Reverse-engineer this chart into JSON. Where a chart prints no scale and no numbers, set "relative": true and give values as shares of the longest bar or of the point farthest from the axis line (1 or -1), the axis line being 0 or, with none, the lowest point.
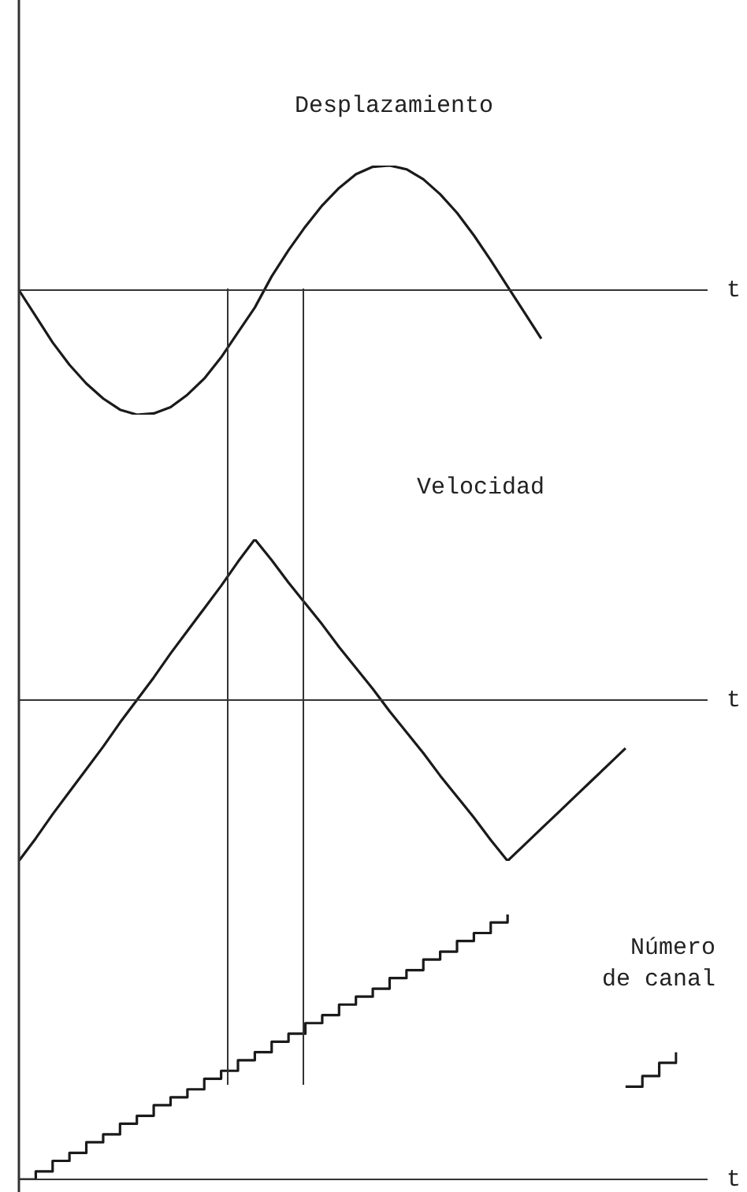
{
  "chart_data": [
    {
      "type": "line",
      "title": "Desplazamiento",
      "xlabel": "t",
      "relative": true,
      "marker": "none",
      "color": "#1a1a1a",
      "categories": [
        null,
        null,
        null,
        null,
        null,
        null,
        null,
        null,
        null,
        null,
        null,
        null,
        null,
        null,
        null,
        null,
        null,
        null,
        null,
        null,
        null,
        null,
        null,
        null,
        null,
        null,
        null,
        null,
        null,
        null,
        null,
        null,
        null,
        null,
        null,
        null,
        null,
        null,
        null,
        null
      ],
      "values": [
        0,
        -0.21,
        -0.42,
        -0.6,
        -0.75,
        -0.87,
        -0.96,
        -1,
        -0.99,
        -0.94,
        -0.84,
        -0.71,
        -0.54,
        -0.34,
        -0.14,
        0.11,
        0.32,
        0.51,
        0.68,
        0.82,
        0.93,
        0.99,
        1,
        0.97,
        0.89,
        0.77,
        0.62,
        0.44,
        0.24,
        0.03,
        -0.18,
        -0.39,
        null,
        null,
        null,
        null,
        null,
        null,
        null,
        null
      ]
    },
    {
      "type": "line",
      "title": "Velocidad",
      "xlabel": "t",
      "relative": true,
      "marker": "none",
      "color": "#1a1a1a",
      "categories": [
        null,
        null,
        null,
        null,
        null,
        null,
        null,
        null,
        null,
        null,
        null,
        null,
        null,
        null,
        null,
        null,
        null,
        null,
        null,
        null,
        null,
        null,
        null,
        null,
        null,
        null,
        null,
        null,
        null,
        null,
        null,
        null,
        null,
        null,
        null,
        null,
        null,
        null,
        null,
        null
      ],
      "values": [
        -1,
        -0.86,
        -0.71,
        -0.57,
        -0.43,
        -0.29,
        -0.14,
        0,
        0.14,
        0.29,
        0.43,
        0.57,
        0.71,
        0.86,
        1,
        0.87,
        0.73,
        0.6,
        0.47,
        0.33,
        0.2,
        0.07,
        -0.07,
        -0.2,
        -0.33,
        -0.47,
        -0.6,
        -0.73,
        -0.87,
        -1,
        -0.9,
        -0.8,
        -0.7,
        -0.6,
        -0.5,
        -0.4,
        -0.3,
        null,
        null,
        null
      ]
    },
    {
      "type": "step",
      "title": "Número de canal",
      "xlabel": "t",
      "relative": true,
      "marker": "none",
      "color": "#1a1a1a",
      "categories": [
        null,
        null,
        null,
        null,
        null,
        null,
        null,
        null,
        null,
        null,
        null,
        null,
        null,
        null,
        null,
        null,
        null,
        null,
        null,
        null,
        null,
        null,
        null,
        null,
        null,
        null,
        null,
        null,
        null,
        null,
        null,
        null,
        null,
        null,
        null,
        null,
        null,
        null,
        null,
        null
      ],
      "values": [
        0,
        0.03,
        0.07,
        0.1,
        0.14,
        0.17,
        0.21,
        0.24,
        0.28,
        0.31,
        0.34,
        0.38,
        0.41,
        0.45,
        0.48,
        0.52,
        0.55,
        0.59,
        0.62,
        0.66,
        0.69,
        0.72,
        0.76,
        0.79,
        0.83,
        0.86,
        0.9,
        0.93,
        0.97,
        1,
        null,
        null,
        null,
        null,
        null,
        null,
        0.35,
        0.39,
        0.44,
        0.48
      ]
    }
  ]
}
